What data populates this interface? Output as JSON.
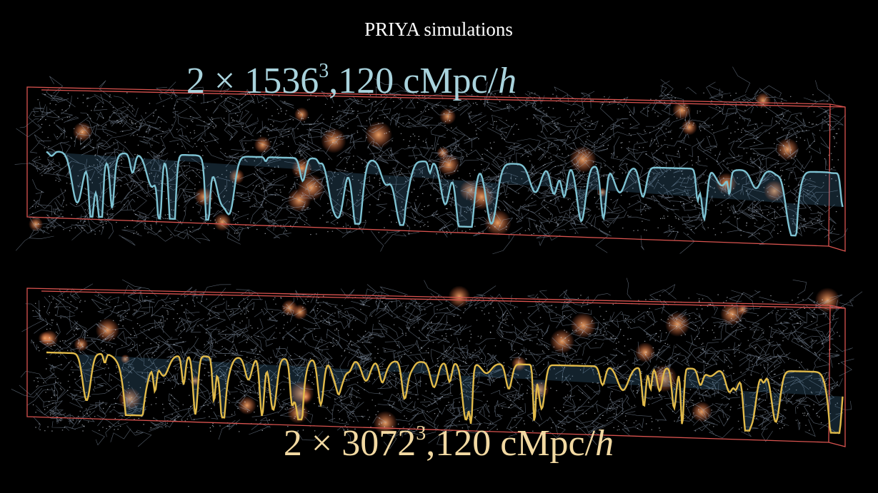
{
  "header": {
    "title": "PRIYA simulations"
  },
  "panels": [
    {
      "label": {
        "prefix": "2 × 1536",
        "exponent": "3",
        "suffix": ",120 cMpc/",
        "unit": "h"
      }
    },
    {
      "label": {
        "prefix": "2 × 3072",
        "exponent": "3",
        "suffix": ",120 cMpc/",
        "unit": "h"
      }
    }
  ]
}
